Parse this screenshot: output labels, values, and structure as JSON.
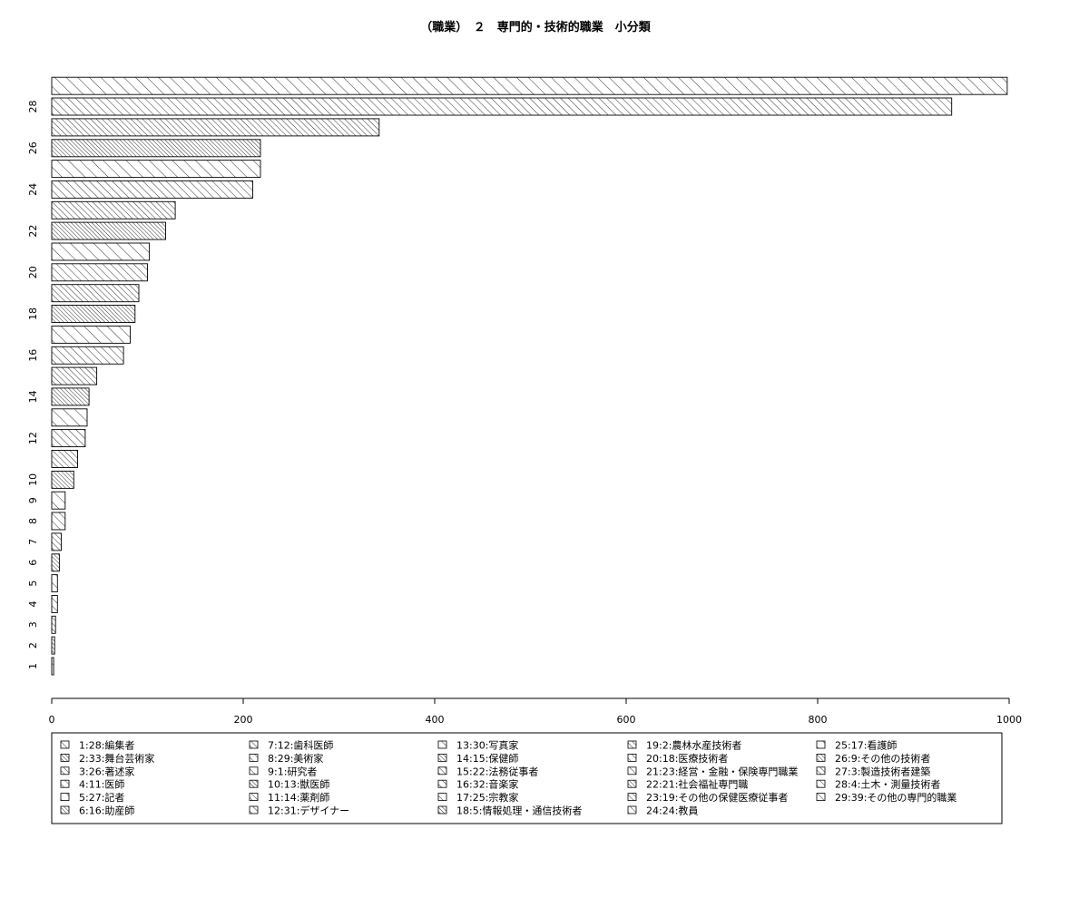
{
  "chart_data": {
    "type": "bar",
    "orientation": "horizontal",
    "title": "（職業）　２　専門的・技術的職業　小分類",
    "xlabel": "",
    "ylabel": "",
    "xlim": [
      0,
      1000
    ],
    "x_ticks": [
      "0",
      "200",
      "400",
      "600",
      "800",
      "1000"
    ],
    "y_tick_labels": [
      "1",
      "2",
      "3",
      "4",
      "5",
      "6",
      "7",
      "8",
      "9",
      "10",
      "12",
      "14",
      "16",
      "18",
      "20",
      "22",
      "24",
      "26",
      "28"
    ],
    "grid": false,
    "legend_position": "bottom",
    "values": [
      2,
      3,
      4,
      6,
      6,
      8,
      10,
      14,
      14,
      23,
      27,
      35,
      37,
      39,
      47,
      75,
      82,
      87,
      91,
      100,
      102,
      119,
      129,
      210,
      218,
      218,
      342,
      940,
      998
    ],
    "legend": [
      "1:28:編集者",
      "2:33:舞台芸術家",
      "3:26:著述家",
      "4:11:医師",
      "5:27:記者",
      "6:16:助産師",
      "7:12:歯科医師",
      "8:29:美術家",
      "9:1:研究者",
      "10:13:獣医師",
      "11:14:薬剤師",
      "12:31:デザイナー",
      "13:30:写真家",
      "14:15:保健師",
      "15:22:法務従事者",
      "16:32:音楽家",
      "17:25:宗教家",
      "18:5:情報処理・通信技術者",
      "19:2:農林水産技術者",
      "20:18:医療技術者",
      "21:23:経営・金融・保険専門職業",
      "22:21:社会福祉専門職",
      "23:19:その他の保健医療従事者",
      "24:24:教員",
      "25:17:看護師",
      "26:9:その他の技術者",
      "27:3:製造技術者建築",
      "28:4:土木・測量技術者",
      "29:39:その他の専門的職業"
    ]
  }
}
